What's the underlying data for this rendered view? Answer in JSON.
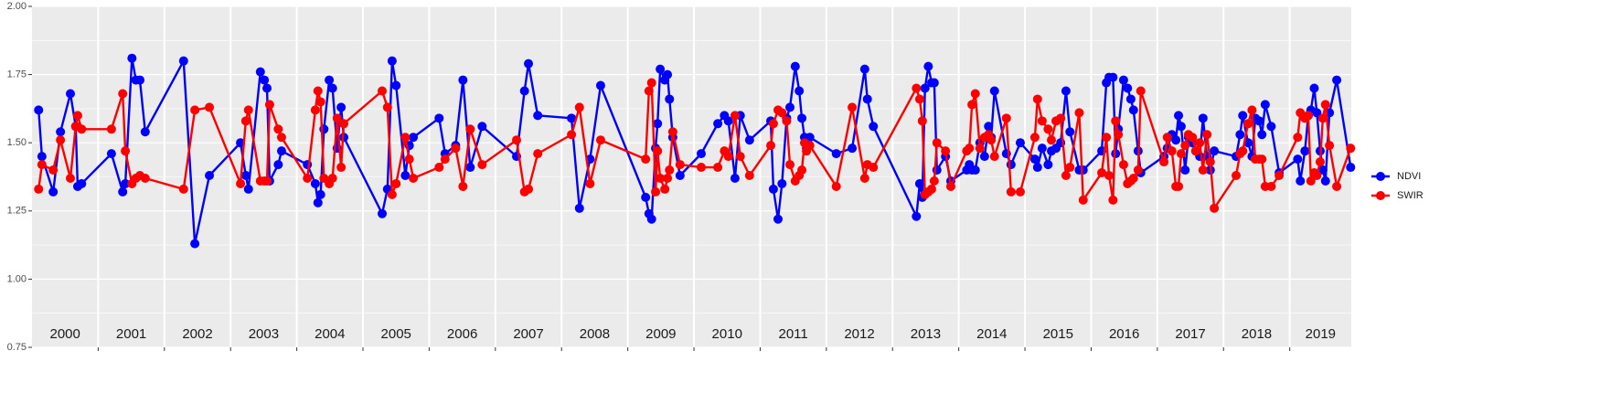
{
  "chart_data": {
    "type": "line",
    "x": [
      2000.1,
      2000.15,
      2000.32,
      2000.43,
      2000.58,
      2000.66,
      2000.69,
      2000.75,
      2001.2,
      2001.37,
      2001.41,
      2001.51,
      2001.57,
      2001.63,
      2001.71,
      2002.29,
      2002.46,
      2002.68,
      2003.15,
      2003.23,
      2003.27,
      2003.45,
      2003.51,
      2003.55,
      2003.59,
      2003.72,
      2003.77,
      2004.16,
      2004.28,
      2004.32,
      2004.36,
      2004.41,
      2004.49,
      2004.54,
      2004.61,
      2004.67,
      2004.71,
      2005.29,
      2005.37,
      2005.44,
      2005.5,
      2005.64,
      2005.7,
      2005.76,
      2006.15,
      2006.24,
      2006.4,
      2006.51,
      2006.62,
      2006.8,
      2007.32,
      2007.44,
      2007.5,
      2007.64,
      2008.15,
      2008.27,
      2008.43,
      2008.59,
      2009.27,
      2009.32,
      2009.36,
      2009.42,
      2009.45,
      2009.49,
      2009.56,
      2009.6,
      2009.63,
      2009.68,
      2009.79,
      2010.11,
      2010.36,
      2010.46,
      2010.52,
      2010.62,
      2010.7,
      2010.84,
      2011.16,
      2011.2,
      2011.27,
      2011.33,
      2011.4,
      2011.45,
      2011.53,
      2011.59,
      2011.63,
      2011.67,
      2011.7,
      2011.75,
      2012.15,
      2012.39,
      2012.58,
      2012.62,
      2012.71,
      2013.36,
      2013.41,
      2013.45,
      2013.49,
      2013.54,
      2013.59,
      2013.63,
      2013.67,
      2013.8,
      2013.88,
      2014.12,
      2014.16,
      2014.2,
      2014.25,
      2014.32,
      2014.39,
      2014.45,
      2014.49,
      2014.54,
      2014.72,
      2014.79,
      2014.93,
      2015.15,
      2015.19,
      2015.26,
      2015.35,
      2015.4,
      2015.47,
      2015.54,
      2015.62,
      2015.68,
      2015.82,
      2015.88,
      2016.16,
      2016.23,
      2016.27,
      2016.33,
      2016.37,
      2016.41,
      2016.49,
      2016.55,
      2016.6,
      2016.64,
      2016.71,
      2016.75,
      2017.1,
      2017.15,
      2017.22,
      2017.28,
      2017.32,
      2017.36,
      2017.42,
      2017.47,
      2017.53,
      2017.58,
      2017.64,
      2017.69,
      2017.75,
      2017.8,
      2017.86,
      2018.19,
      2018.25,
      2018.29,
      2018.37,
      2018.43,
      2018.48,
      2018.54,
      2018.58,
      2018.63,
      2018.72,
      2018.84,
      2019.12,
      2019.16,
      2019.23,
      2019.28,
      2019.32,
      2019.37,
      2019.41,
      2019.46,
      2019.5,
      2019.54,
      2019.6,
      2019.71,
      2019.92
    ],
    "series": [
      {
        "name": "NDVI",
        "color": "#0000ff",
        "values": [
          1.62,
          1.45,
          1.32,
          1.54,
          1.68,
          1.56,
          1.34,
          1.35,
          1.46,
          1.32,
          1.35,
          1.81,
          1.73,
          1.73,
          1.54,
          1.8,
          1.13,
          1.38,
          1.5,
          1.38,
          1.33,
          1.76,
          1.73,
          1.7,
          1.36,
          1.42,
          1.47,
          1.42,
          1.35,
          1.28,
          1.31,
          1.55,
          1.73,
          1.7,
          1.48,
          1.63,
          1.52,
          1.24,
          1.33,
          1.8,
          1.71,
          1.38,
          1.49,
          1.52,
          1.59,
          1.46,
          1.49,
          1.73,
          1.41,
          1.56,
          1.45,
          1.69,
          1.79,
          1.6,
          1.59,
          1.26,
          1.44,
          1.71,
          1.3,
          1.24,
          1.22,
          1.48,
          1.57,
          1.77,
          1.73,
          1.75,
          1.66,
          1.52,
          1.38,
          1.46,
          1.57,
          1.6,
          1.58,
          1.37,
          1.6,
          1.51,
          1.58,
          1.33,
          1.22,
          1.35,
          1.59,
          1.63,
          1.78,
          1.69,
          1.59,
          1.52,
          1.48,
          1.52,
          1.46,
          1.48,
          1.77,
          1.66,
          1.56,
          1.23,
          1.35,
          1.3,
          1.7,
          1.78,
          1.72,
          1.72,
          1.4,
          1.45,
          1.36,
          1.4,
          1.42,
          1.4,
          1.4,
          1.5,
          1.45,
          1.56,
          1.52,
          1.69,
          1.46,
          1.42,
          1.5,
          1.44,
          1.41,
          1.48,
          1.42,
          1.47,
          1.48,
          1.5,
          1.69,
          1.54,
          1.4,
          1.4,
          1.47,
          1.72,
          1.74,
          1.74,
          1.46,
          1.55,
          1.73,
          1.7,
          1.66,
          1.62,
          1.47,
          1.39,
          1.45,
          1.48,
          1.53,
          1.51,
          1.6,
          1.56,
          1.4,
          1.52,
          1.5,
          1.47,
          1.45,
          1.59,
          1.45,
          1.4,
          1.47,
          1.45,
          1.53,
          1.6,
          1.5,
          1.45,
          1.59,
          1.58,
          1.53,
          1.64,
          1.56,
          1.39,
          1.44,
          1.36,
          1.47,
          1.6,
          1.62,
          1.7,
          1.61,
          1.47,
          1.4,
          1.36,
          1.61,
          1.73,
          1.41
        ]
      },
      {
        "name": "SWIR",
        "color": "#ff0000",
        "values": [
          1.33,
          1.42,
          1.4,
          1.51,
          1.37,
          1.56,
          1.6,
          1.55,
          1.55,
          1.68,
          1.47,
          1.35,
          1.37,
          1.38,
          1.37,
          1.33,
          1.62,
          1.63,
          1.35,
          1.58,
          1.62,
          1.36,
          1.36,
          1.36,
          1.64,
          1.55,
          1.52,
          1.37,
          1.62,
          1.69,
          1.65,
          1.37,
          1.35,
          1.37,
          1.59,
          1.41,
          1.57,
          1.69,
          1.63,
          1.31,
          1.35,
          1.52,
          1.44,
          1.37,
          1.41,
          1.44,
          1.48,
          1.34,
          1.55,
          1.42,
          1.51,
          1.32,
          1.33,
          1.46,
          1.53,
          1.63,
          1.35,
          1.51,
          1.44,
          1.69,
          1.72,
          1.32,
          1.47,
          1.37,
          1.33,
          1.37,
          1.4,
          1.54,
          1.42,
          1.41,
          1.41,
          1.47,
          1.45,
          1.6,
          1.45,
          1.38,
          1.49,
          1.57,
          1.62,
          1.61,
          1.58,
          1.42,
          1.36,
          1.38,
          1.4,
          1.5,
          1.47,
          1.49,
          1.34,
          1.63,
          1.37,
          1.42,
          1.41,
          1.7,
          1.66,
          1.58,
          1.31,
          1.32,
          1.33,
          1.36,
          1.5,
          1.47,
          1.34,
          1.47,
          1.48,
          1.64,
          1.68,
          1.48,
          1.52,
          1.53,
          1.51,
          1.45,
          1.59,
          1.32,
          1.32,
          1.52,
          1.66,
          1.58,
          1.55,
          1.51,
          1.58,
          1.59,
          1.38,
          1.41,
          1.61,
          1.29,
          1.39,
          1.52,
          1.38,
          1.29,
          1.58,
          1.53,
          1.42,
          1.35,
          1.36,
          1.37,
          1.4,
          1.69,
          1.43,
          1.52,
          1.47,
          1.34,
          1.34,
          1.46,
          1.49,
          1.53,
          1.52,
          1.47,
          1.5,
          1.4,
          1.53,
          1.43,
          1.26,
          1.38,
          1.46,
          1.47,
          1.57,
          1.62,
          1.44,
          1.44,
          1.44,
          1.34,
          1.34,
          1.38,
          1.52,
          1.61,
          1.59,
          1.6,
          1.36,
          1.39,
          1.38,
          1.43,
          1.59,
          1.64,
          1.49,
          1.34,
          1.48
        ]
      }
    ],
    "years": [
      2000,
      2001,
      2002,
      2003,
      2004,
      2005,
      2006,
      2007,
      2008,
      2009,
      2010,
      2011,
      2012,
      2013,
      2014,
      2015,
      2016,
      2017,
      2018,
      2019
    ],
    "xlim": [
      2000,
      2019.93
    ],
    "ylim": [
      0.75,
      2.0
    ],
    "yticks": [
      {
        "value": 0.75,
        "label": "0.75"
      },
      {
        "value": 1.0,
        "label": "1.00"
      },
      {
        "value": 1.25,
        "label": "1.25"
      },
      {
        "value": 1.5,
        "label": "1.50"
      },
      {
        "value": 1.75,
        "label": "1.75"
      },
      {
        "value": 2.0,
        "label": "2.00"
      }
    ],
    "grid": true,
    "legend": "right"
  }
}
